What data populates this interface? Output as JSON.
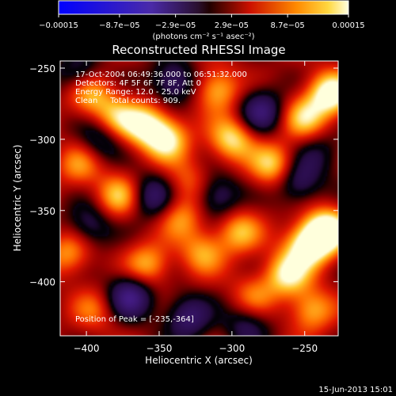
{
  "chart_data": {
    "type": "heatmap",
    "title": "Reconstructed RHESSI Image",
    "xlabel": "Heliocentric X (arcsec)",
    "ylabel": "Heliocentric Y (arcsec)",
    "xlim": [
      -418,
      -227
    ],
    "ylim": [
      -438,
      -245
    ],
    "xticks": [
      -400,
      -350,
      -300,
      -250
    ],
    "yticks": [
      -250,
      -300,
      -350,
      -400
    ],
    "colorbar": {
      "min": -0.00015,
      "max": 0.00015,
      "tick_values": [
        -0.00015,
        -8.7e-05,
        -2.9e-05,
        2.9e-05,
        8.7e-05,
        0.00015
      ],
      "tick_labels": [
        "-0.00015",
        "-8.7e-05",
        "-2.9e-05",
        "2.9e-05",
        "8.7e-05",
        "0.00015"
      ],
      "unit_label": "(photons cm⁻² s⁻¹ asec⁻²)"
    },
    "annotations": [
      "17-Oct-2004 06:49:36.000 to 06:51:32.000",
      "Detectors: 4F 5F 6F 7F 8F, Att 0",
      "Energy Range: 12.0 - 25.0 keV",
      "Clean     Total counts: 909."
    ],
    "peak_label": "Position of Peak = [-235,-364]",
    "peak": [
      -235,
      -364
    ],
    "blobs": [
      {
        "x": -235,
        "y": -364,
        "v": 1.0
      },
      {
        "x": -248,
        "y": -375,
        "v": 0.85
      },
      {
        "x": -262,
        "y": -395,
        "v": 0.7
      },
      {
        "x": -232,
        "y": -268,
        "v": 0.9
      },
      {
        "x": -250,
        "y": -285,
        "v": 0.6
      },
      {
        "x": -272,
        "y": -318,
        "v": 0.65
      },
      {
        "x": -300,
        "y": -300,
        "v": 0.7
      },
      {
        "x": -310,
        "y": -265,
        "v": 0.6
      },
      {
        "x": -345,
        "y": -300,
        "v": 0.75
      },
      {
        "x": -360,
        "y": -290,
        "v": 0.7
      },
      {
        "x": -380,
        "y": -285,
        "v": 0.55
      },
      {
        "x": -398,
        "y": -268,
        "v": 0.6
      },
      {
        "x": -378,
        "y": -340,
        "v": 0.6
      },
      {
        "x": -405,
        "y": -318,
        "v": 0.45
      },
      {
        "x": -358,
        "y": -388,
        "v": 0.55
      },
      {
        "x": -320,
        "y": -380,
        "v": 0.5
      },
      {
        "x": -295,
        "y": -365,
        "v": 0.55
      },
      {
        "x": -335,
        "y": -355,
        "v": 0.45
      },
      {
        "x": -412,
        "y": -380,
        "v": 0.5
      },
      {
        "x": -395,
        "y": -420,
        "v": 0.35
      },
      {
        "x": -245,
        "y": -420,
        "v": 0.55
      },
      {
        "x": -330,
        "y": -330,
        "v": 0.35
      },
      {
        "x": -285,
        "y": -410,
        "v": 0.4
      },
      {
        "x": -330,
        "y": -425,
        "v": -0.55
      },
      {
        "x": -370,
        "y": -410,
        "v": -0.7
      },
      {
        "x": -398,
        "y": -360,
        "v": -0.45
      },
      {
        "x": -390,
        "y": -300,
        "v": -0.45
      },
      {
        "x": -340,
        "y": -260,
        "v": -0.55
      },
      {
        "x": -280,
        "y": -280,
        "v": -0.6
      },
      {
        "x": -255,
        "y": -330,
        "v": -0.5
      },
      {
        "x": -310,
        "y": -340,
        "v": -0.5
      },
      {
        "x": -355,
        "y": -340,
        "v": -0.55
      },
      {
        "x": -290,
        "y": -430,
        "v": -0.4
      },
      {
        "x": -240,
        "y": -310,
        "v": -0.3
      },
      {
        "x": -405,
        "y": -255,
        "v": -0.45
      }
    ]
  },
  "footer": {
    "date": "15-Jun-2013 15:01"
  }
}
